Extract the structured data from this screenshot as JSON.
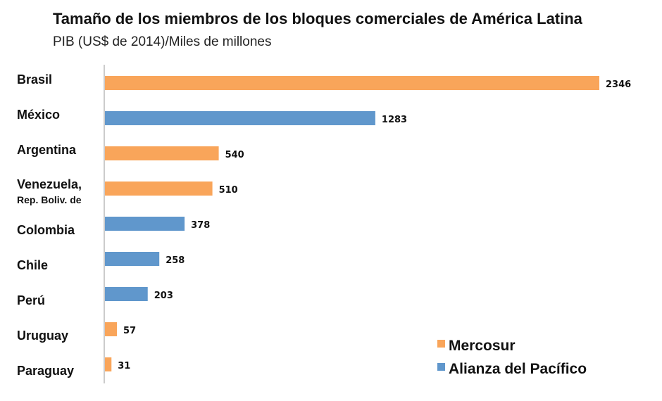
{
  "chart_data": {
    "type": "bar",
    "orientation": "horizontal",
    "title": "Tamaño de los miembros de los bloques comerciales de América Latina",
    "subtitle": "PIB (US$ de 2014)/Miles de millones",
    "categories": [
      "Brasil",
      "México",
      "Argentina",
      "Venezuela,|Rep. Boliv. de",
      "Colombia",
      "Chile",
      "Perú",
      "Uruguay",
      "Paraguay"
    ],
    "values": [
      2346,
      1283,
      540,
      510,
      378,
      258,
      203,
      57,
      31
    ],
    "groups": [
      "Mercosur",
      "Alianza del Pacífico",
      "Mercosur",
      "Mercosur",
      "Alianza del Pacífico",
      "Alianza del Pacífico",
      "Alianza del Pacífico",
      "Mercosur",
      "Mercosur"
    ],
    "legend": [
      {
        "name": "Mercosur",
        "color": "#F9A55A"
      },
      {
        "name": "Alianza del Pacífico",
        "color": "#6097CC"
      }
    ],
    "legend_position": "bottom-right",
    "xlim": [
      0,
      2346
    ],
    "grid": false,
    "data_labels": true
  }
}
